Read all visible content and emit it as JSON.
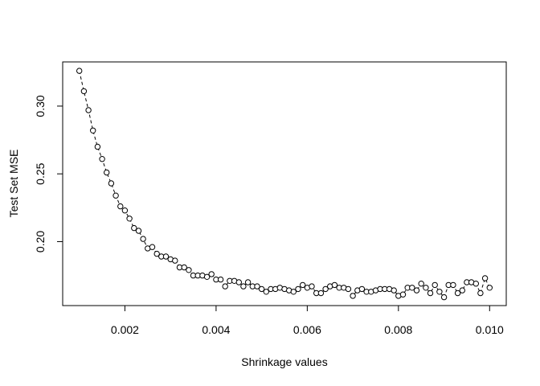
{
  "chart_data": {
    "type": "scatter",
    "title": "",
    "xlabel": "Shrinkage values",
    "ylabel": "Test Set MSE",
    "xlim": [
      0.000635,
      0.010365
    ],
    "ylim": [
      0.1528,
      0.3326
    ],
    "xticks": [
      0.002,
      0.004,
      0.006,
      0.008,
      0.01
    ],
    "xtick_labels": [
      "0.002",
      "0.004",
      "0.006",
      "0.008",
      "0.010"
    ],
    "yticks": [
      0.2,
      0.25,
      0.3
    ],
    "ytick_labels": [
      "0.20",
      "0.25",
      "0.30"
    ],
    "grid": false,
    "legend": "none",
    "line_style": "dashed",
    "marker": "open-circle",
    "x": [
      0.001,
      0.0011,
      0.0012,
      0.0013,
      0.0014,
      0.0015,
      0.0016,
      0.0017,
      0.0018,
      0.0019,
      0.002,
      0.0021,
      0.0022,
      0.0023,
      0.0024,
      0.0025,
      0.0026,
      0.0027,
      0.0028,
      0.0029,
      0.003,
      0.0031,
      0.0032,
      0.0033,
      0.0034,
      0.0035,
      0.0036,
      0.0037,
      0.0038,
      0.0039,
      0.004,
      0.0041,
      0.0042,
      0.0043,
      0.0044,
      0.0045,
      0.0046,
      0.0047,
      0.0048,
      0.0049,
      0.005,
      0.0051,
      0.0052,
      0.0053,
      0.0054,
      0.0055,
      0.0056,
      0.0057,
      0.0058,
      0.0059,
      0.006,
      0.0061,
      0.0062,
      0.0063,
      0.0064,
      0.0065,
      0.0066,
      0.0067,
      0.0068,
      0.0069,
      0.007,
      0.0071,
      0.0072,
      0.0073,
      0.0074,
      0.0075,
      0.0076,
      0.0077,
      0.0078,
      0.0079,
      0.008,
      0.0081,
      0.0082,
      0.0083,
      0.0084,
      0.0085,
      0.0086,
      0.0087,
      0.0088,
      0.0089,
      0.009,
      0.0091,
      0.0092,
      0.0093,
      0.0094,
      0.0095,
      0.0096,
      0.0097,
      0.0098,
      0.0099,
      0.01
    ],
    "y": [
      0.326,
      0.311,
      0.297,
      0.282,
      0.27,
      0.261,
      0.251,
      0.243,
      0.234,
      0.226,
      0.223,
      0.217,
      0.21,
      0.208,
      0.202,
      0.195,
      0.196,
      0.191,
      0.189,
      0.189,
      0.187,
      0.186,
      0.181,
      0.181,
      0.179,
      0.175,
      0.175,
      0.175,
      0.174,
      0.176,
      0.172,
      0.172,
      0.167,
      0.171,
      0.171,
      0.17,
      0.167,
      0.17,
      0.167,
      0.167,
      0.165,
      0.163,
      0.165,
      0.165,
      0.166,
      0.165,
      0.164,
      0.163,
      0.165,
      0.168,
      0.166,
      0.167,
      0.162,
      0.162,
      0.165,
      0.167,
      0.168,
      0.166,
      0.166,
      0.165,
      0.16,
      0.164,
      0.165,
      0.163,
      0.163,
      0.164,
      0.165,
      0.165,
      0.165,
      0.164,
      0.16,
      0.161,
      0.166,
      0.166,
      0.164,
      0.169,
      0.166,
      0.162,
      0.168,
      0.163,
      0.159,
      0.168,
      0.168,
      0.162,
      0.164,
      0.17,
      0.17,
      0.169,
      0.162,
      0.173,
      0.166
    ]
  }
}
